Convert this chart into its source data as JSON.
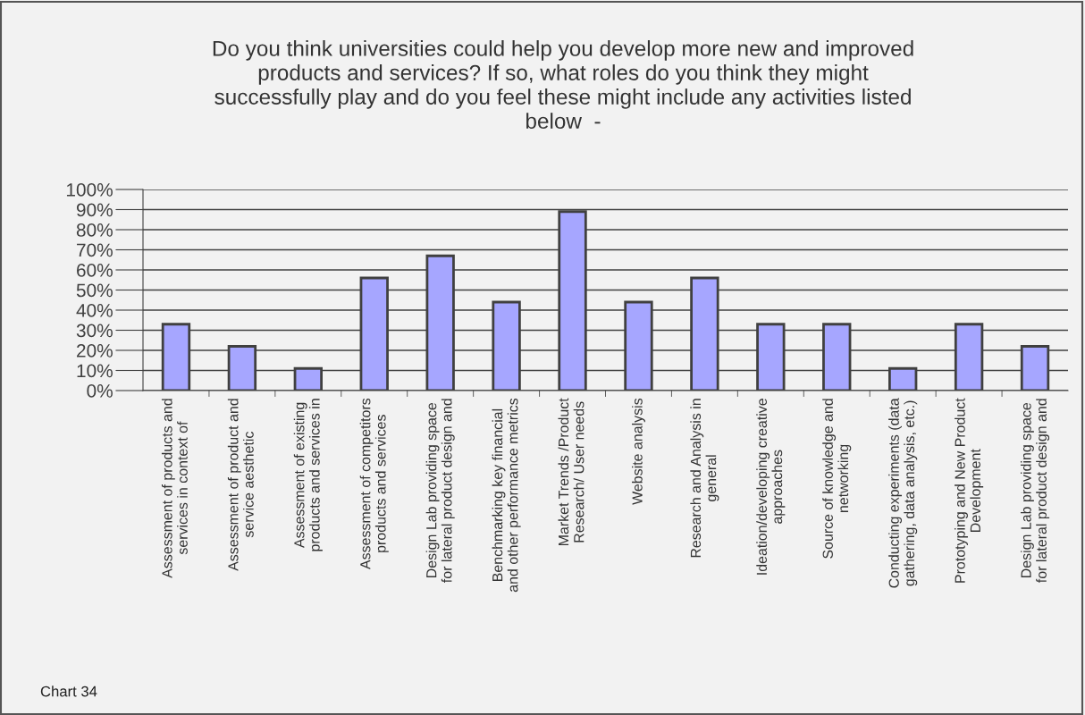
{
  "chart_data": {
    "type": "bar",
    "title": "Do you think universities could help you develop more new and improved\nproducts and services? If so, what roles do you think they might\nsuccessfully play and do you feel these might include any activities listed\nbelow  -",
    "categories": [
      "Assessment of products and\nservices in context of",
      "Assessment of product and\nservice aesthetic",
      "Assessment of existing\nproducts and services in",
      "Assessment of competitors\nproducts and services",
      "Design Lab providing space\nfor lateral product design and",
      "Benchmarking key financial\nand other performance metrics",
      "Market Trends /Product\nResearch/ User needs",
      "Website analysis",
      "Research and Analysis in\ngeneral",
      "Ideation/developing creative\napproaches",
      "Source of knowledge and\nnetworking",
      "Conducting experiments (data\ngathering, data analysis, etc.)",
      "Prototyping and New Product\nDevelopment",
      "Design Lab providing space\nfor lateral product design and"
    ],
    "values": [
      33,
      22,
      11,
      56,
      67,
      44,
      89,
      44,
      56,
      33,
      33,
      11,
      33,
      22
    ],
    "color": "#a6a6ff",
    "ylim": [
      0,
      100
    ],
    "yticks": [
      {
        "value": 0,
        "label": "0%"
      },
      {
        "value": 10,
        "label": "10%"
      },
      {
        "value": 20,
        "label": "20%"
      },
      {
        "value": 30,
        "label": "30%"
      },
      {
        "value": 40,
        "label": "40%"
      },
      {
        "value": 50,
        "label": "50%"
      },
      {
        "value": 60,
        "label": "60%"
      },
      {
        "value": 70,
        "label": "70%"
      },
      {
        "value": 80,
        "label": "80%"
      },
      {
        "value": 90,
        "label": "90%"
      },
      {
        "value": 100,
        "label": "100%"
      }
    ],
    "grid": "y",
    "annotations": [
      "Chart 34"
    ]
  }
}
